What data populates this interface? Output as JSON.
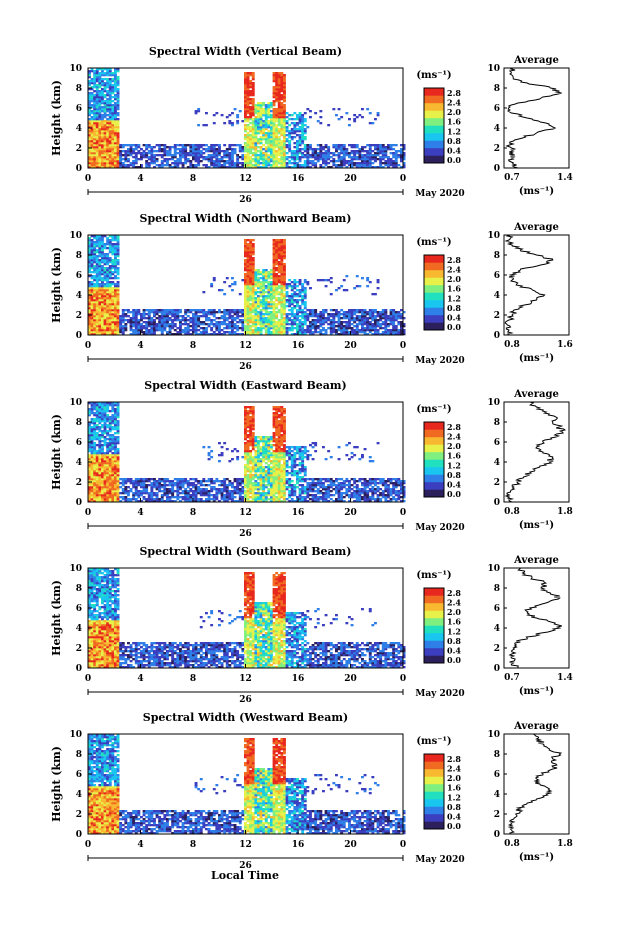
{
  "figure": {
    "xlabel": "Local Time",
    "date_label": "May 2020",
    "day_label": "26",
    "colorbar_unit": "(ms⁻¹)",
    "avg_title": "Average",
    "avg_unit": "(ms⁻¹)"
  },
  "colors": {
    "colormap": [
      "#2b1f5c",
      "#3b3fbf",
      "#2f7fe8",
      "#19c6f0",
      "#20e0c0",
      "#7ff07f",
      "#e8f04a",
      "#f8b830",
      "#f06a22",
      "#e8281e"
    ]
  },
  "chart_data": [
    {
      "type": "heatmap",
      "title": "Spectral Width (Vertical Beam)",
      "ylabel": "Height (km)",
      "xlim": [
        0,
        24
      ],
      "ylim": [
        0,
        10
      ],
      "xticks": [
        "0",
        "4",
        "8",
        "12",
        "16",
        "20",
        "0"
      ],
      "yticks": [
        "0",
        "2",
        "4",
        "6",
        "8",
        "10"
      ],
      "colorbar_ticks": [
        "2.8",
        "2.4",
        "2.0",
        "1.6",
        "1.2",
        "0.8",
        "0.4",
        "0.0"
      ],
      "average": {
        "type": "line",
        "xticks": [
          "0.7",
          "1.4"
        ],
        "xlim": [
          0.7,
          1.4
        ],
        "profile": [
          [
            0,
            0.85
          ],
          [
            0.5,
            0.8
          ],
          [
            1,
            0.78
          ],
          [
            1.5,
            0.8
          ],
          [
            2,
            0.78
          ],
          [
            2.5,
            0.76
          ],
          [
            3,
            0.9
          ],
          [
            3.5,
            1.05
          ],
          [
            4,
            1.25
          ],
          [
            4.5,
            1.15
          ],
          [
            5,
            0.95
          ],
          [
            5.5,
            0.78
          ],
          [
            6,
            0.75
          ],
          [
            6.5,
            0.85
          ],
          [
            7,
            1.1
          ],
          [
            7.5,
            1.32
          ],
          [
            8,
            1.2
          ],
          [
            8.5,
            0.95
          ],
          [
            9,
            0.8
          ],
          [
            9.5,
            0.78
          ],
          [
            10,
            0.8
          ]
        ]
      }
    },
    {
      "type": "heatmap",
      "title": "Spectral Width (Northward Beam)",
      "ylabel": "Height (km)",
      "xlim": [
        0,
        24
      ],
      "ylim": [
        0,
        10
      ],
      "xticks": [
        "0",
        "4",
        "8",
        "12",
        "16",
        "20",
        "0"
      ],
      "yticks": [
        "0",
        "2",
        "4",
        "6",
        "8",
        "10"
      ],
      "colorbar_ticks": [
        "2.8",
        "2.4",
        "2.0",
        "1.6",
        "1.2",
        "0.8",
        "0.4",
        "0.0"
      ],
      "average": {
        "type": "line",
        "xticks": [
          "0.8",
          "1.6"
        ],
        "xlim": [
          0.8,
          1.6
        ],
        "profile": [
          [
            0,
            0.88
          ],
          [
            0.5,
            0.86
          ],
          [
            1,
            0.84
          ],
          [
            1.5,
            0.86
          ],
          [
            2,
            0.9
          ],
          [
            2.5,
            0.92
          ],
          [
            3,
            1.05
          ],
          [
            3.5,
            1.2
          ],
          [
            4,
            1.3
          ],
          [
            4.5,
            1.15
          ],
          [
            5,
            0.95
          ],
          [
            5.5,
            0.9
          ],
          [
            6,
            0.88
          ],
          [
            6.5,
            1.0
          ],
          [
            7,
            1.25
          ],
          [
            7.5,
            1.4
          ],
          [
            8,
            1.2
          ],
          [
            8.5,
            1.0
          ],
          [
            9,
            0.9
          ],
          [
            9.5,
            0.86
          ],
          [
            10,
            0.88
          ]
        ]
      }
    },
    {
      "type": "heatmap",
      "title": "Spectral Width (Eastward Beam)",
      "ylabel": "Height (km)",
      "xlim": [
        0,
        24
      ],
      "ylim": [
        0,
        10
      ],
      "xticks": [
        "0",
        "4",
        "8",
        "12",
        "16",
        "20",
        "0"
      ],
      "yticks": [
        "0",
        "2",
        "4",
        "6",
        "8",
        "10"
      ],
      "colorbar_ticks": [
        "2.8",
        "2.4",
        "2.0",
        "1.6",
        "1.2",
        "0.8",
        "0.4",
        "0.0"
      ],
      "average": {
        "type": "line",
        "xticks": [
          "0.8",
          "1.8"
        ],
        "xlim": [
          0.8,
          1.8
        ],
        "profile": [
          [
            0,
            0.92
          ],
          [
            0.5,
            0.88
          ],
          [
            1,
            0.9
          ],
          [
            1.5,
            0.95
          ],
          [
            2,
            1.0
          ],
          [
            2.5,
            1.1
          ],
          [
            3,
            1.2
          ],
          [
            3.5,
            1.35
          ],
          [
            4,
            1.5
          ],
          [
            4.5,
            1.55
          ],
          [
            5,
            1.4
          ],
          [
            5.5,
            1.3
          ],
          [
            6,
            1.4
          ],
          [
            6.5,
            1.6
          ],
          [
            7,
            1.7
          ],
          [
            7.5,
            1.65
          ],
          [
            8,
            1.55
          ],
          [
            8.5,
            1.6
          ],
          [
            9,
            1.45
          ],
          [
            9.5,
            1.3
          ],
          [
            10,
            1.2
          ]
        ]
      }
    },
    {
      "type": "heatmap",
      "title": "Spectral Width (Southward Beam)",
      "ylabel": "Height (km)",
      "xlim": [
        0,
        24
      ],
      "ylim": [
        0,
        10
      ],
      "xticks": [
        "0",
        "4",
        "8",
        "12",
        "16",
        "20",
        "0"
      ],
      "yticks": [
        "0",
        "2",
        "4",
        "6",
        "8",
        "10"
      ],
      "colorbar_ticks": [
        "2.8",
        "2.4",
        "2.0",
        "1.6",
        "1.2",
        "0.8",
        "0.4",
        "0.0"
      ],
      "average": {
        "type": "line",
        "xticks": [
          "0.7",
          "1.4"
        ],
        "xlim": [
          0.7,
          1.4
        ],
        "profile": [
          [
            0,
            0.85
          ],
          [
            0.5,
            0.8
          ],
          [
            1,
            0.78
          ],
          [
            1.5,
            0.82
          ],
          [
            2,
            0.8
          ],
          [
            2.5,
            0.82
          ],
          [
            3,
            0.95
          ],
          [
            3.5,
            1.1
          ],
          [
            4,
            1.3
          ],
          [
            4.5,
            1.25
          ],
          [
            5,
            1.05
          ],
          [
            5.5,
            0.95
          ],
          [
            6,
            0.98
          ],
          [
            6.5,
            1.15
          ],
          [
            7,
            1.3
          ],
          [
            7.5,
            1.2
          ],
          [
            8,
            1.1
          ],
          [
            8.5,
            1.15
          ],
          [
            9,
            1.0
          ],
          [
            9.5,
            0.9
          ],
          [
            10,
            0.88
          ]
        ]
      }
    },
    {
      "type": "heatmap",
      "title": "Spectral Width (Westward Beam)",
      "ylabel": "Height (km)",
      "xlim": [
        0,
        24
      ],
      "ylim": [
        0,
        10
      ],
      "xticks": [
        "0",
        "4",
        "8",
        "12",
        "16",
        "20",
        "0"
      ],
      "yticks": [
        "0",
        "2",
        "4",
        "6",
        "8",
        "10"
      ],
      "colorbar_ticks": [
        "2.8",
        "2.4",
        "2.0",
        "1.6",
        "1.2",
        "0.8",
        "0.4",
        "0.0"
      ],
      "average": {
        "type": "line",
        "xticks": [
          "0.8",
          "1.8"
        ],
        "xlim": [
          0.8,
          1.8
        ],
        "profile": [
          [
            0,
            0.92
          ],
          [
            0.5,
            0.9
          ],
          [
            1,
            0.92
          ],
          [
            1.5,
            0.95
          ],
          [
            2,
            0.98
          ],
          [
            2.5,
            1.05
          ],
          [
            3,
            1.15
          ],
          [
            3.5,
            1.3
          ],
          [
            4,
            1.45
          ],
          [
            4.5,
            1.5
          ],
          [
            5,
            1.35
          ],
          [
            5.5,
            1.3
          ],
          [
            6,
            1.4
          ],
          [
            6.5,
            1.55
          ],
          [
            7,
            1.6
          ],
          [
            7.5,
            1.55
          ],
          [
            8,
            1.65
          ],
          [
            8.5,
            1.5
          ],
          [
            9,
            1.4
          ],
          [
            9.5,
            1.3
          ],
          [
            10,
            1.25
          ]
        ]
      }
    }
  ]
}
